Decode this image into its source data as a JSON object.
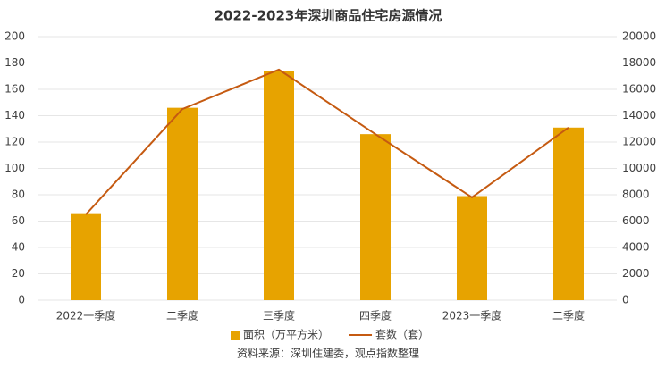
{
  "chart_data": {
    "type": "bar",
    "title": "2022-2023年深圳商品住宅房源情况",
    "categories": [
      "2022一季度",
      "二季度",
      "三季度",
      "四季度",
      "2023一季度",
      "二季度"
    ],
    "series": [
      {
        "name": "面积（万平方米）",
        "color": "#e7a300",
        "values": [
          66,
          146,
          174,
          126,
          79,
          131
        ]
      },
      {
        "name": "套数（套）",
        "type": "line",
        "axis": "y2",
        "color": "#c55a11",
        "values": [
          6500,
          14500,
          17500,
          12600,
          7800,
          13100
        ]
      }
    ],
    "ylim": [
      0,
      200
    ],
    "yticks": [
      0,
      20,
      40,
      60,
      80,
      100,
      120,
      140,
      160,
      180,
      200
    ],
    "y2lim": [
      0,
      20000
    ],
    "y2ticks": [
      0,
      2000,
      4000,
      6000,
      8000,
      10000,
      12000,
      14000,
      16000,
      18000,
      20000
    ],
    "grid": true,
    "legend": "bottom",
    "source": "资料来源：深圳住建委，观点指数整理"
  }
}
